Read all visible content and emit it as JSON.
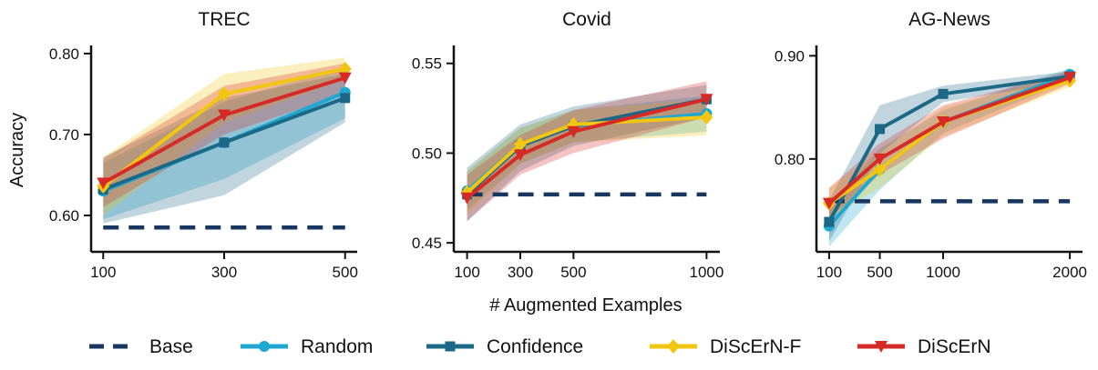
{
  "figure": {
    "xlabel": "# Augmented Examples",
    "ylabel": "Accuracy"
  },
  "colors": {
    "Base": "#17375e",
    "Random": "#1ea7d0",
    "Confidence": "#1b6987",
    "DiScErN-F": "#f2c511",
    "DiScErN": "#d62a27"
  },
  "chart_data": [
    {
      "type": "line",
      "title": "TREC",
      "x": [
        100,
        300,
        500
      ],
      "xticks": [
        "100",
        "300",
        "500"
      ],
      "xlim": [
        80,
        520
      ],
      "ylim": [
        0.555,
        0.81
      ],
      "yticks": [
        0.6,
        0.7,
        0.8
      ],
      "ytick_labels": [
        "0.60",
        "0.70",
        "0.80"
      ],
      "base": 0.585,
      "series": [
        {
          "name": "Random",
          "values": [
            0.63,
            0.69,
            0.752
          ],
          "lower": [
            0.595,
            0.645,
            0.72
          ],
          "upper": [
            0.665,
            0.74,
            0.784
          ]
        },
        {
          "name": "Confidence",
          "values": [
            0.632,
            0.69,
            0.745
          ],
          "lower": [
            0.59,
            0.625,
            0.715
          ],
          "upper": [
            0.672,
            0.745,
            0.775
          ]
        },
        {
          "name": "DiScErN-F",
          "values": [
            0.636,
            0.75,
            0.781
          ],
          "lower": [
            0.6,
            0.715,
            0.768
          ],
          "upper": [
            0.672,
            0.775,
            0.795
          ]
        },
        {
          "name": "DiScErN",
          "values": [
            0.64,
            0.724,
            0.77
          ],
          "lower": [
            0.61,
            0.7,
            0.75
          ],
          "upper": [
            0.67,
            0.76,
            0.788
          ]
        }
      ]
    },
    {
      "type": "line",
      "title": "Covid",
      "x": [
        100,
        300,
        500,
        1000
      ],
      "xticks": [
        "100",
        "300",
        "500",
        "1000"
      ],
      "xlim": [
        50,
        1050
      ],
      "ylim": [
        0.445,
        0.56
      ],
      "yticks": [
        0.45,
        0.5,
        0.55
      ],
      "ytick_labels": [
        "0.45",
        "0.50",
        "0.55"
      ],
      "base": 0.477,
      "series": [
        {
          "name": "Random",
          "values": [
            0.479,
            0.505,
            0.515,
            0.522
          ],
          "lower": [
            0.468,
            0.494,
            0.506,
            0.512
          ],
          "upper": [
            0.49,
            0.514,
            0.524,
            0.532
          ]
        },
        {
          "name": "Confidence",
          "values": [
            0.477,
            0.504,
            0.515,
            0.53
          ],
          "lower": [
            0.462,
            0.49,
            0.504,
            0.52
          ],
          "upper": [
            0.492,
            0.516,
            0.526,
            0.538
          ]
        },
        {
          "name": "DiScErN-F",
          "values": [
            0.478,
            0.505,
            0.516,
            0.52
          ],
          "lower": [
            0.466,
            0.494,
            0.506,
            0.51
          ],
          "upper": [
            0.49,
            0.514,
            0.524,
            0.53
          ]
        },
        {
          "name": "DiScErN",
          "values": [
            0.475,
            0.499,
            0.512,
            0.53
          ],
          "lower": [
            0.462,
            0.488,
            0.5,
            0.52
          ],
          "upper": [
            0.488,
            0.51,
            0.524,
            0.54
          ]
        }
      ]
    },
    {
      "type": "line",
      "title": "AG-News",
      "x": [
        100,
        500,
        1000,
        2000
      ],
      "xticks": [
        "100",
        "500",
        "1000",
        "2000"
      ],
      "xlim": [
        0,
        2100
      ],
      "ylim": [
        0.71,
        0.91
      ],
      "yticks": [
        0.8,
        0.9
      ],
      "ytick_labels": [
        "0.80",
        "0.90"
      ],
      "base": 0.759,
      "series": [
        {
          "name": "Random",
          "values": [
            0.735,
            0.79,
            0.836,
            0.882
          ],
          "lower": [
            0.715,
            0.77,
            0.825,
            0.876
          ],
          "upper": [
            0.755,
            0.81,
            0.847,
            0.888
          ]
        },
        {
          "name": "Confidence",
          "values": [
            0.739,
            0.829,
            0.863,
            0.88
          ],
          "lower": [
            0.72,
            0.805,
            0.855,
            0.875
          ],
          "upper": [
            0.76,
            0.852,
            0.871,
            0.885
          ]
        },
        {
          "name": "DiScErN-F",
          "values": [
            0.757,
            0.79,
            0.836,
            0.876
          ],
          "lower": [
            0.742,
            0.772,
            0.822,
            0.87
          ],
          "upper": [
            0.772,
            0.808,
            0.85,
            0.882
          ]
        },
        {
          "name": "DiScErN",
          "values": [
            0.757,
            0.8,
            0.836,
            0.879
          ],
          "lower": [
            0.742,
            0.785,
            0.82,
            0.873
          ],
          "upper": [
            0.772,
            0.815,
            0.852,
            0.885
          ]
        }
      ]
    }
  ],
  "legend": [
    {
      "name": "Base",
      "label": "Base",
      "style": "dashed",
      "marker": "none"
    },
    {
      "name": "Random",
      "label": "Random",
      "style": "solid",
      "marker": "circle"
    },
    {
      "name": "Confidence",
      "label": "Confidence",
      "style": "solid",
      "marker": "square"
    },
    {
      "name": "DiScErN-F",
      "label": "DiScErN-F",
      "style": "solid",
      "marker": "diamond"
    },
    {
      "name": "DiScErN",
      "label": "DiScErN",
      "style": "solid",
      "marker": "triangle-down"
    }
  ]
}
